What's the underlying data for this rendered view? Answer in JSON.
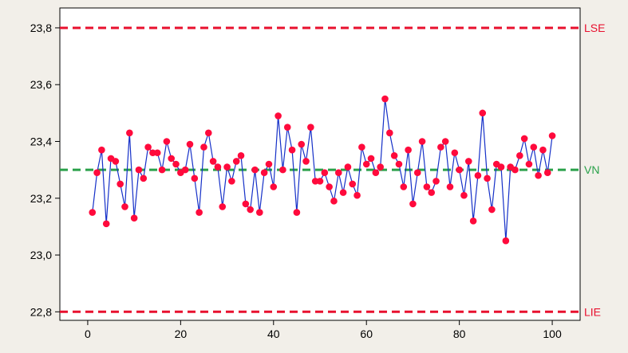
{
  "chart_data": {
    "type": "line",
    "title": "",
    "xlabel": "",
    "ylabel": "",
    "xlim": [
      -6,
      106
    ],
    "ylim": [
      22.77,
      23.87
    ],
    "x_ticks": [
      0,
      20,
      40,
      60,
      80,
      100
    ],
    "x_tick_labels": [
      "0",
      "20",
      "40",
      "60",
      "80",
      "100"
    ],
    "y_ticks": [
      22.8,
      23.0,
      23.2,
      23.4,
      23.6,
      23.8
    ],
    "y_tick_labels": [
      "22,8",
      "23,0",
      "23,2",
      "23,4",
      "23,6",
      "23,8"
    ],
    "grid": false,
    "reference_lines": [
      {
        "label": "LSE",
        "value": 23.8,
        "color": "#e8102e",
        "style": "dashed"
      },
      {
        "label": "VN",
        "value": 23.3,
        "color": "#2aa14a",
        "style": "dashed"
      },
      {
        "label": "LIE",
        "value": 22.8,
        "color": "#e8102e",
        "style": "dashed"
      }
    ],
    "series": [
      {
        "line_color": "#1530c8",
        "marker_color": "#ff0a3c",
        "x": [
          1,
          2,
          3,
          4,
          5,
          6,
          7,
          8,
          9,
          10,
          11,
          12,
          13,
          14,
          15,
          16,
          17,
          18,
          19,
          20,
          21,
          22,
          23,
          24,
          25,
          26,
          27,
          28,
          29,
          30,
          31,
          32,
          33,
          34,
          35,
          36,
          37,
          38,
          39,
          40,
          41,
          42,
          43,
          44,
          45,
          46,
          47,
          48,
          49,
          50,
          51,
          52,
          53,
          54,
          55,
          56,
          57,
          58,
          59,
          60,
          61,
          62,
          63,
          64,
          65,
          66,
          67,
          68,
          69,
          70,
          71,
          72,
          73,
          74,
          75,
          76,
          77,
          78,
          79,
          80,
          81,
          82,
          83,
          84,
          85,
          86,
          87,
          88,
          89,
          90,
          91,
          92,
          93,
          94,
          95,
          96,
          97,
          98,
          99,
          100
        ],
        "values": [
          23.15,
          23.29,
          23.37,
          23.11,
          23.34,
          23.33,
          23.25,
          23.17,
          23.43,
          23.13,
          23.3,
          23.27,
          23.38,
          23.36,
          23.36,
          23.3,
          23.4,
          23.34,
          23.32,
          23.29,
          23.3,
          23.39,
          23.27,
          23.15,
          23.38,
          23.43,
          23.33,
          23.31,
          23.17,
          23.31,
          23.26,
          23.33,
          23.35,
          23.18,
          23.16,
          23.3,
          23.15,
          23.29,
          23.32,
          23.24,
          23.49,
          23.3,
          23.45,
          23.37,
          23.15,
          23.39,
          23.33,
          23.45,
          23.26,
          23.26,
          23.29,
          23.24,
          23.19,
          23.29,
          23.22,
          23.31,
          23.25,
          23.21,
          23.38,
          23.32,
          23.34,
          23.29,
          23.31,
          23.55,
          23.43,
          23.35,
          23.32,
          23.24,
          23.37,
          23.18,
          23.29,
          23.4,
          23.24,
          23.22,
          23.26,
          23.38,
          23.4,
          23.24,
          23.36,
          23.3,
          23.21,
          23.33,
          23.12,
          23.28,
          23.5,
          23.27,
          23.16,
          23.32,
          23.31,
          23.05,
          23.31,
          23.3,
          23.35,
          23.41,
          23.32,
          23.38,
          23.28,
          23.37,
          23.29,
          23.42
        ]
      }
    ]
  }
}
